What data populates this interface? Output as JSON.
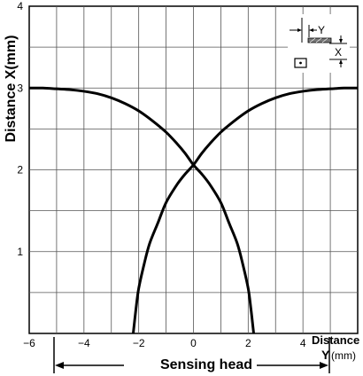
{
  "chart_data": {
    "type": "line",
    "ylabel": "Distance X(mm)",
    "xlabel_line1": "Distance",
    "xlabel_line2": "Y",
    "xlabel_unit": "(mm)",
    "xlim": [
      -6,
      6
    ],
    "ylim": [
      0,
      4
    ],
    "x_ticks": [
      "−6",
      "−4",
      "−2",
      "0",
      "2",
      "4"
    ],
    "y_ticks": [
      "1",
      "2",
      "3",
      "4"
    ],
    "grid": true,
    "series": [
      {
        "x": [
          -2.2,
          -2.1,
          -2.0,
          -1.8,
          -1.6,
          -1.3,
          -1.0,
          -0.6,
          -0.3,
          0.0,
          0.3,
          0.6,
          1.0,
          1.5,
          2.0,
          2.5,
          3.0,
          3.5,
          4.0,
          4.5,
          5.0,
          5.5,
          6.0
        ],
        "y": [
          0.0,
          0.3,
          0.55,
          0.85,
          1.1,
          1.35,
          1.6,
          1.82,
          1.95,
          2.06,
          2.2,
          2.32,
          2.46,
          2.6,
          2.72,
          2.81,
          2.88,
          2.93,
          2.96,
          2.98,
          2.99,
          3.0,
          3.0
        ]
      },
      {
        "x": [
          -6.0,
          -5.5,
          -5.0,
          -4.5,
          -4.0,
          -3.5,
          -3.0,
          -2.5,
          -2.0,
          -1.5,
          -1.0,
          -0.6,
          -0.3,
          0.0,
          0.3,
          0.6,
          1.0,
          1.3,
          1.6,
          1.8,
          2.0,
          2.1,
          2.2
        ],
        "y": [
          3.0,
          3.0,
          2.99,
          2.98,
          2.96,
          2.93,
          2.88,
          2.81,
          2.72,
          2.6,
          2.46,
          2.32,
          2.2,
          2.06,
          1.95,
          1.82,
          1.6,
          1.35,
          1.1,
          0.85,
          0.55,
          0.3,
          0.0
        ]
      }
    ]
  },
  "sensing_head_label": "Sensing head",
  "diagram": {
    "y_label": "Y",
    "x_label": "X"
  }
}
